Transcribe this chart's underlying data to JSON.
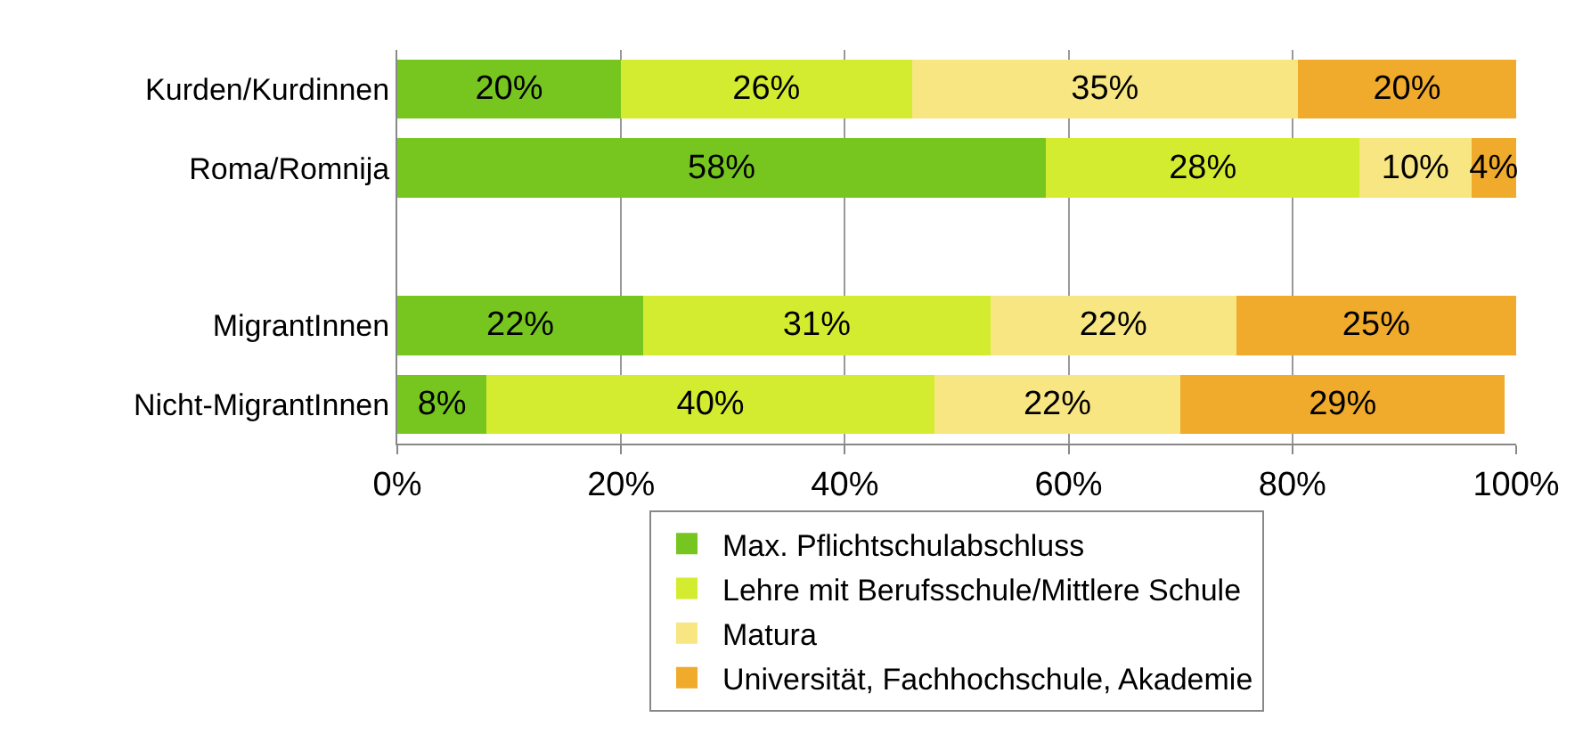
{
  "chart_data": {
    "type": "bar",
    "orientation": "horizontal",
    "stacked": true,
    "categories": [
      "Kurden/Kurdinnen",
      "Roma/Romnija",
      null,
      "MigrantInnen",
      "Nicht-MigrantInnen"
    ],
    "series": [
      {
        "name": "Max. Pflichtschulabschluss",
        "color": "#77c620",
        "values": [
          20,
          58,
          null,
          22,
          8
        ],
        "value_labels": [
          "20%",
          "58%",
          null,
          "22%",
          "8%"
        ]
      },
      {
        "name": "Lehre mit Berufsschule/Mittlere Schule",
        "color": "#d4ec30",
        "values": [
          26,
          28,
          null,
          31,
          40
        ],
        "value_labels": [
          "26%",
          "28%",
          null,
          "31%",
          "40%"
        ]
      },
      {
        "name": "Matura",
        "color": "#f7e682",
        "values": [
          34.5,
          10,
          null,
          22,
          22
        ],
        "value_labels": [
          "35%",
          "10%",
          null,
          "22%",
          "22%"
        ]
      },
      {
        "name": "Universität, Fachhochschule, Akademie",
        "color": "#f0aa2c",
        "values": [
          19.5,
          4,
          null,
          25,
          29
        ],
        "value_labels": [
          "20%",
          "4%",
          null,
          "25%",
          "29%"
        ]
      }
    ],
    "xlim": [
      0,
      100
    ],
    "xticks": [
      {
        "value": 0,
        "label": "0%"
      },
      {
        "value": 20,
        "label": "20%"
      },
      {
        "value": 40,
        "label": "40%"
      },
      {
        "value": 60,
        "label": "60%"
      },
      {
        "value": 80,
        "label": "80%"
      },
      {
        "value": 100,
        "label": "100%"
      }
    ],
    "grid": "x",
    "legend": "bottom"
  }
}
